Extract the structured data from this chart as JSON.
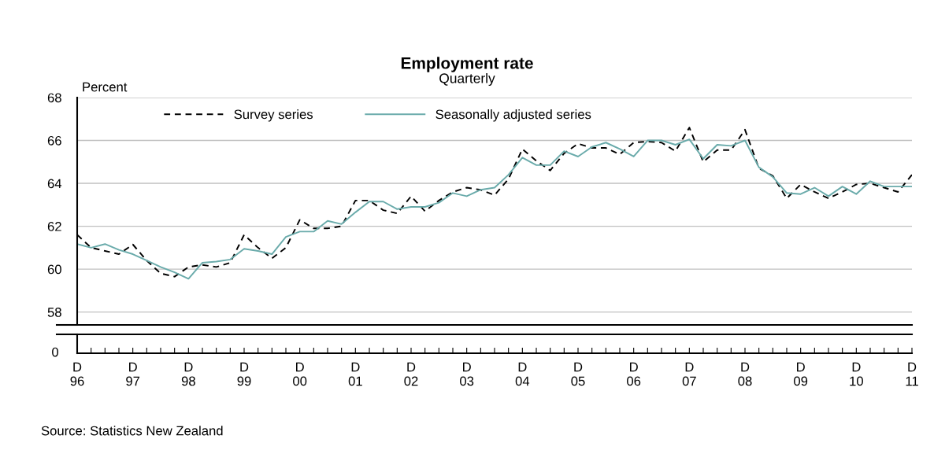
{
  "chart_data": {
    "type": "line",
    "title": "Employment rate",
    "subtitle": "Quarterly",
    "ylabel": "Percent",
    "categories": [
      "D\n96",
      null,
      null,
      null,
      "D\n97",
      null,
      null,
      null,
      "D\n98",
      null,
      null,
      null,
      "D\n99",
      null,
      null,
      null,
      "D\n00",
      null,
      null,
      null,
      "D\n01",
      null,
      null,
      null,
      "D\n02",
      null,
      null,
      null,
      "D\n03",
      null,
      null,
      null,
      "D\n04",
      null,
      null,
      null,
      "D\n05",
      null,
      null,
      null,
      "D\n06",
      null,
      null,
      null,
      "D\n07",
      null,
      null,
      null,
      "D\n08",
      null,
      null,
      null,
      "D\n09",
      null,
      null,
      null,
      "D\n10",
      null,
      null,
      null,
      "D\n11"
    ],
    "series": [
      {
        "name": "Survey series",
        "color": "#000000",
        "line_style": "dashed",
        "values": [
          61.6,
          61.0,
          60.85,
          60.7,
          61.15,
          60.4,
          59.8,
          59.65,
          60.1,
          60.2,
          60.1,
          60.3,
          61.6,
          61.0,
          60.5,
          61.0,
          62.3,
          61.9,
          61.9,
          62.0,
          63.2,
          63.2,
          62.75,
          62.6,
          63.4,
          62.7,
          63.2,
          63.6,
          63.8,
          63.7,
          63.45,
          64.2,
          65.6,
          65.05,
          64.6,
          65.4,
          65.85,
          65.65,
          65.65,
          65.35,
          65.9,
          65.95,
          65.9,
          65.5,
          66.6,
          65.0,
          65.55,
          65.55,
          66.5,
          64.7,
          64.35,
          63.3,
          63.95,
          63.6,
          63.3,
          63.6,
          63.95,
          64.0,
          63.8,
          63.6,
          64.4
        ]
      },
      {
        "name": "Seasonally adjusted series",
        "color": "#6aabab",
        "line_style": "solid",
        "values": [
          61.17,
          61.0,
          61.17,
          60.9,
          60.7,
          60.4,
          60.1,
          59.85,
          59.55,
          60.3,
          60.35,
          60.45,
          60.95,
          60.85,
          60.7,
          61.5,
          61.75,
          61.75,
          62.25,
          62.1,
          62.65,
          63.15,
          63.15,
          62.8,
          62.9,
          62.9,
          63.1,
          63.55,
          63.4,
          63.7,
          63.8,
          64.4,
          65.2,
          64.85,
          64.85,
          65.5,
          65.25,
          65.7,
          65.9,
          65.6,
          65.25,
          66.0,
          66.0,
          65.8,
          66.05,
          65.15,
          65.8,
          65.75,
          66.0,
          64.75,
          64.3,
          63.55,
          63.5,
          63.8,
          63.4,
          63.85,
          63.5,
          64.1,
          63.85,
          63.85,
          63.85
        ]
      }
    ],
    "ylim": [
      57.4,
      68
    ],
    "yticks": [
      58,
      60,
      62,
      64,
      66,
      68
    ],
    "grid": "y",
    "legend": "top",
    "annotations": [
      "0",
      "Source: Statistics New Zealand"
    ]
  }
}
